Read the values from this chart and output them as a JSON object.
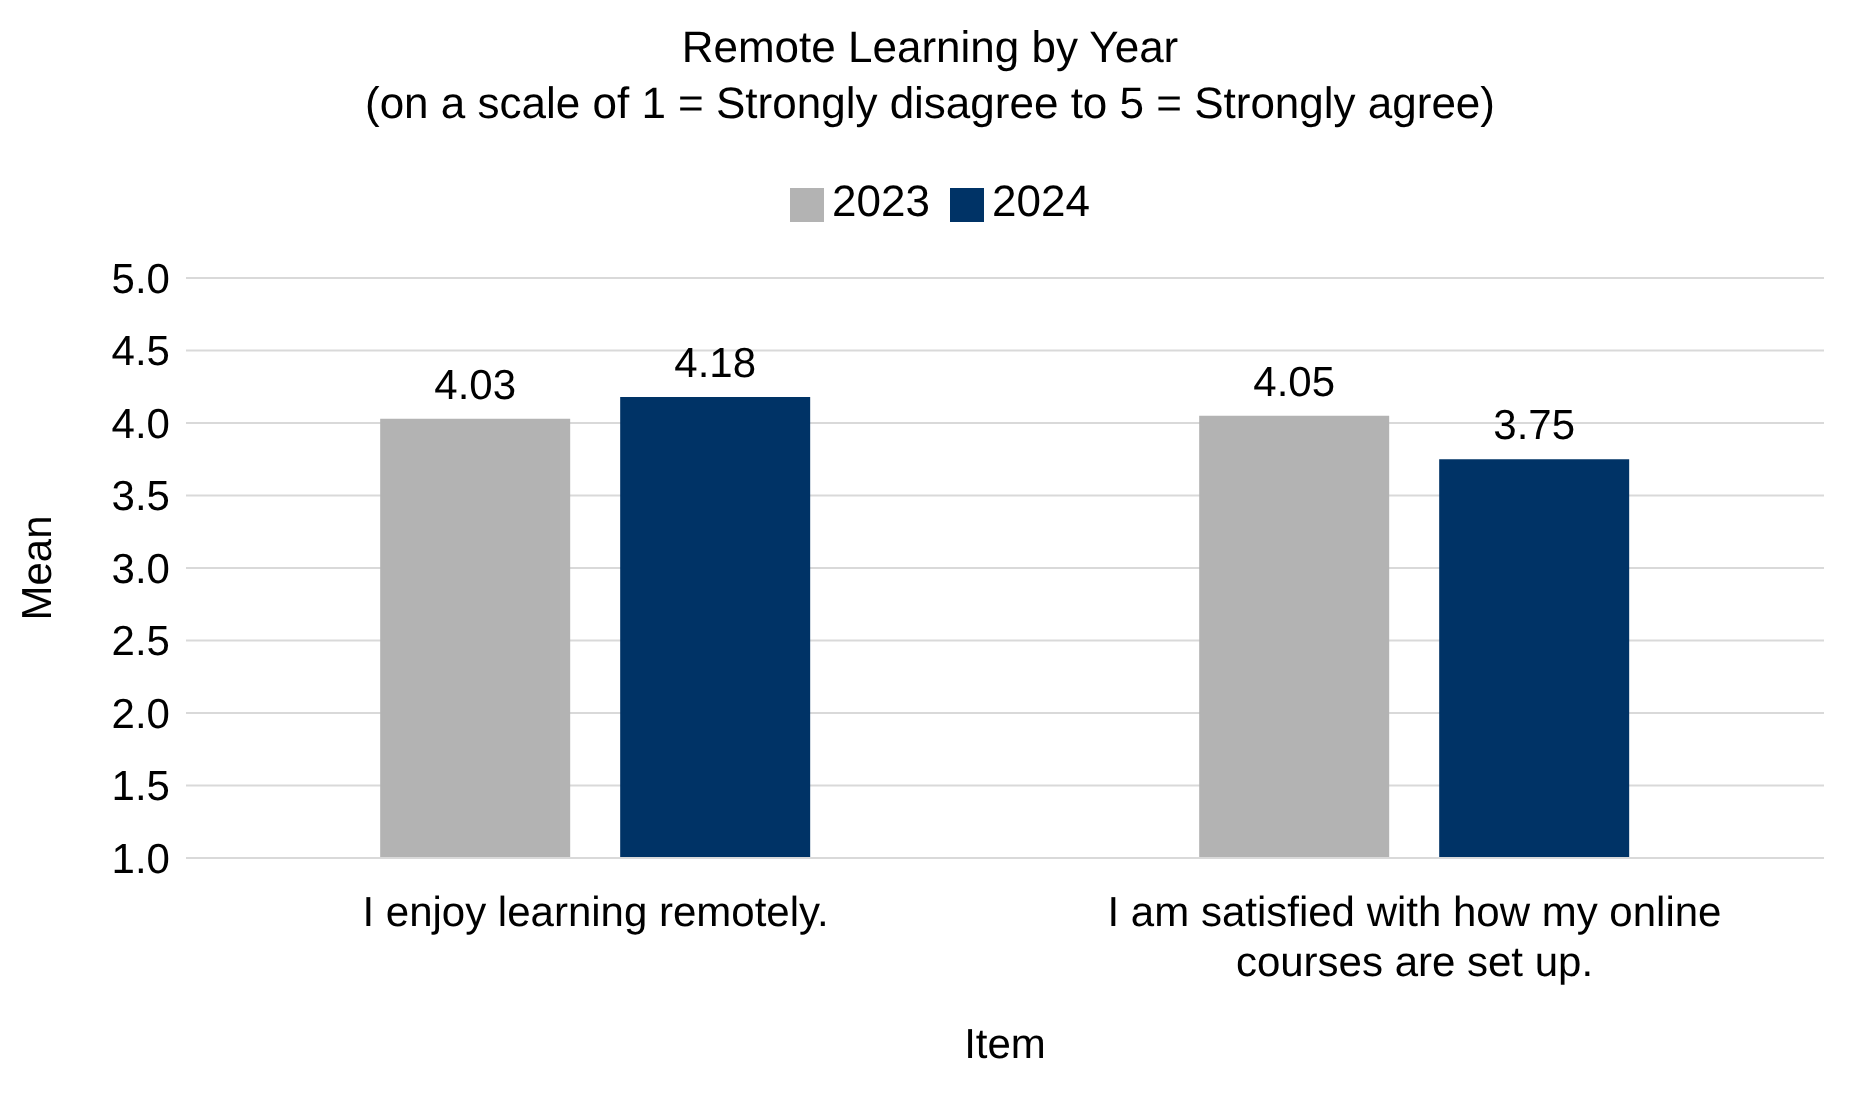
{
  "chart_data": {
    "type": "bar",
    "title": "Remote Learning by Year\n(on a scale of 1 = Strongly disagree to 5 = Strongly agree)",
    "xlabel": "Item",
    "ylabel": "Mean",
    "categories": [
      "I enjoy learning remotely.",
      "I am satisfied with how my online courses are set up."
    ],
    "series": [
      {
        "name": "2023",
        "color": "#b3b3b3",
        "values": [
          4.03,
          4.05
        ]
      },
      {
        "name": "2024",
        "color": "#003366",
        "values": [
          4.18,
          3.75
        ]
      }
    ],
    "ylim": [
      1,
      5
    ],
    "yticks": [
      {
        "value": 1,
        "label": "1.0"
      },
      {
        "value": 1.5,
        "label": "1.5"
      },
      {
        "value": 2,
        "label": "2.0"
      },
      {
        "value": 2.5,
        "label": "2.5"
      },
      {
        "value": 3,
        "label": "3.0"
      },
      {
        "value": 3.5,
        "label": "3.5"
      },
      {
        "value": 4,
        "label": "4.0"
      },
      {
        "value": 4.5,
        "label": "4.5"
      },
      {
        "value": 5,
        "label": "5.0"
      }
    ],
    "grid": "y",
    "legend": "top",
    "data_labels": true
  }
}
